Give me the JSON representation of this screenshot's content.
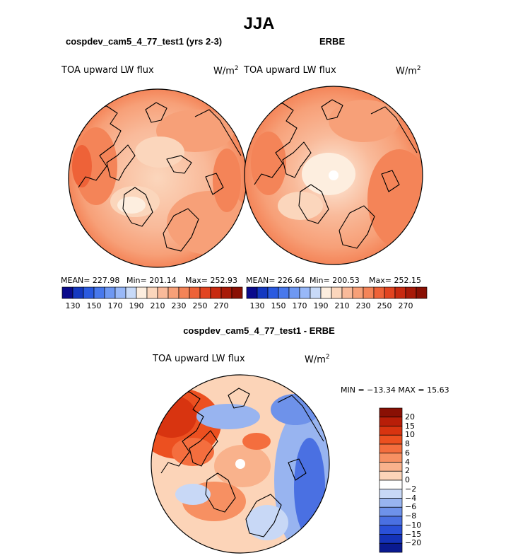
{
  "figure": {
    "season": "JJA"
  },
  "panels": [
    {
      "id": "model",
      "title": "cospdev_cam5_4_77_test1 (yrs 2-3)",
      "variable_label": "TOA upward LW flux",
      "units": "W/m",
      "units_exp": "2",
      "stats": {
        "mean": "MEAN= 227.98",
        "min": "Min= 201.14",
        "max": "Max= 252.93"
      }
    },
    {
      "id": "obs",
      "title": "ERBE",
      "variable_label": "TOA upward LW flux",
      "units": "W/m",
      "units_exp": "2",
      "stats": {
        "mean": "MEAN= 226.64",
        "min": "Min= 200.53",
        "max": "Max= 252.15"
      }
    }
  ],
  "abs_colorbar": {
    "colors": [
      "#0a0a8c",
      "#1438c0",
      "#2a5ae0",
      "#4878ec",
      "#6e98f2",
      "#98b8f8",
      "#c8daf8",
      "#fdeedf",
      "#fbd6bc",
      "#f9ba9a",
      "#f7a078",
      "#f48458",
      "#ee6238",
      "#e24420",
      "#c82a10",
      "#a81a08",
      "#8a1004"
    ],
    "labels": [
      "130",
      "150",
      "170",
      "190",
      "210",
      "230",
      "250",
      "270"
    ]
  },
  "diff_panel": {
    "title": "cospdev_cam5_4_77_test1 - ERBE",
    "variable_label": "TOA upward LW flux",
    "units": "W/m",
    "units_exp": "2",
    "minmax": "MIN = −13.34 MAX =  15.63"
  },
  "diff_colorbar": {
    "colors": [
      "#8a1004",
      "#b81e08",
      "#d83410",
      "#ec5020",
      "#f46e3e",
      "#f79062",
      "#f9b28c",
      "#fcd4b8",
      "#ffffff",
      "#c8d8f6",
      "#98b4f0",
      "#6e92ea",
      "#4a70e2",
      "#2a50d8",
      "#1432b8",
      "#0a1a90"
    ],
    "labels": [
      "20",
      "15",
      "10",
      "8",
      "6",
      "4",
      "2",
      "0",
      "−2",
      "−4",
      "−6",
      "−8",
      "−10",
      "−15",
      "−20"
    ]
  }
}
